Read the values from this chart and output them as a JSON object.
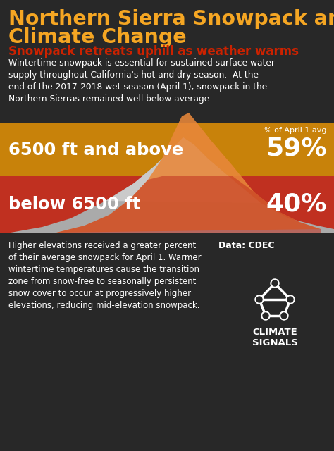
{
  "title_line1": "Northern Sierra Snowpack and",
  "title_line2": "Climate Change",
  "subtitle": "Snowpack retreats uphill as weather warms",
  "intro_text": "Wintertime snowpack is essential for sustained surface water\nsupply throughout California's hot and dry season.  At the\nend of the 2017-2018 wet season (April 1), snowpack in the\nNorthern Sierras remained well below average.",
  "upper_label": "6500 ft and above",
  "upper_pct": "59%",
  "lower_label": "below 6500 ft",
  "lower_pct": "40%",
  "pct_of_avg_label": "% of April 1 avg",
  "footer_text": "Higher elevations received a greater percent\nof their average snowpack for April 1. Warmer\nwintertime temperatures cause the transition\nzone from snow-free to seasonally persistent\nsnow cover to occur at progressively higher\nelevations, reducing mid-elevation snowpack.",
  "data_label": "Data: CDEC",
  "logo_label": "CLIMATE\nSIGNALS",
  "bg_color": "#282828",
  "title_color": "#f5a623",
  "subtitle_color": "#cc2200",
  "intro_text_color": "#ffffff",
  "upper_band_color": "#c8820a",
  "lower_band_color": "#c03020",
  "upper_text_color": "#ffffff",
  "lower_text_color": "#ffffff",
  "footer_text_color": "#ffffff",
  "mountain_orange_color": "#e8873a",
  "mountain_gray_color": "#aaaaaa",
  "mountain_light_gray": "#d0d0d0"
}
